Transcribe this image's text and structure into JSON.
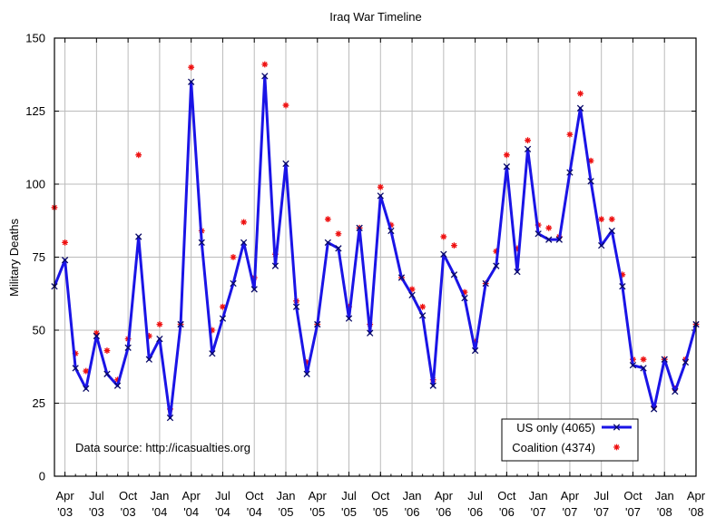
{
  "chart_data": {
    "type": "line",
    "title": "Iraq War Timeline",
    "ylabel": "Military Deaths",
    "xlabel": "",
    "ylim": [
      0,
      150
    ],
    "xlim": [
      "2003-03",
      "2008-04"
    ],
    "yticks": [
      0,
      25,
      50,
      75,
      100,
      125,
      150
    ],
    "xticks": [
      {
        "m": "2003-04",
        "top": "Apr",
        "bottom": "'03"
      },
      {
        "m": "2003-07",
        "top": "Jul",
        "bottom": "'03"
      },
      {
        "m": "2003-10",
        "top": "Oct",
        "bottom": "'03"
      },
      {
        "m": "2004-01",
        "top": "Jan",
        "bottom": "'04"
      },
      {
        "m": "2004-04",
        "top": "Apr",
        "bottom": "'04"
      },
      {
        "m": "2004-07",
        "top": "Jul",
        "bottom": "'04"
      },
      {
        "m": "2004-10",
        "top": "Oct",
        "bottom": "'04"
      },
      {
        "m": "2005-01",
        "top": "Jan",
        "bottom": "'05"
      },
      {
        "m": "2005-04",
        "top": "Apr",
        "bottom": "'05"
      },
      {
        "m": "2005-07",
        "top": "Jul",
        "bottom": "'05"
      },
      {
        "m": "2005-10",
        "top": "Oct",
        "bottom": "'05"
      },
      {
        "m": "2006-01",
        "top": "Jan",
        "bottom": "'06"
      },
      {
        "m": "2006-04",
        "top": "Apr",
        "bottom": "'06"
      },
      {
        "m": "2006-07",
        "top": "Jul",
        "bottom": "'06"
      },
      {
        "m": "2006-10",
        "top": "Oct",
        "bottom": "'06"
      },
      {
        "m": "2007-01",
        "top": "Jan",
        "bottom": "'07"
      },
      {
        "m": "2007-04",
        "top": "Apr",
        "bottom": "'07"
      },
      {
        "m": "2007-07",
        "top": "Jul",
        "bottom": "'07"
      },
      {
        "m": "2007-10",
        "top": "Oct",
        "bottom": "'07"
      },
      {
        "m": "2008-01",
        "top": "Jan",
        "bottom": "'08"
      },
      {
        "m": "2008-04",
        "top": "Apr",
        "bottom": "'08"
      }
    ],
    "x": [
      "2003-03",
      "2003-04",
      "2003-05",
      "2003-06",
      "2003-07",
      "2003-08",
      "2003-09",
      "2003-10",
      "2003-11",
      "2003-12",
      "2004-01",
      "2004-02",
      "2004-03",
      "2004-04",
      "2004-05",
      "2004-06",
      "2004-07",
      "2004-08",
      "2004-09",
      "2004-10",
      "2004-11",
      "2004-12",
      "2005-01",
      "2005-02",
      "2005-03",
      "2005-04",
      "2005-05",
      "2005-06",
      "2005-07",
      "2005-08",
      "2005-09",
      "2005-10",
      "2005-11",
      "2005-12",
      "2006-01",
      "2006-02",
      "2006-03",
      "2006-04",
      "2006-05",
      "2006-06",
      "2006-07",
      "2006-08",
      "2006-09",
      "2006-10",
      "2006-11",
      "2006-12",
      "2007-01",
      "2007-02",
      "2007-03",
      "2007-04",
      "2007-05",
      "2007-06",
      "2007-07",
      "2007-08",
      "2007-09",
      "2007-10",
      "2007-11",
      "2007-12",
      "2008-01",
      "2008-02",
      "2008-03",
      "2008-04"
    ],
    "series": [
      {
        "name": "US only (4065)",
        "color": "#1a14e6",
        "marker": "x",
        "line": true,
        "values": [
          65,
          74,
          37,
          30,
          48,
          35,
          31,
          44,
          82,
          40,
          47,
          20,
          52,
          135,
          80,
          42,
          54,
          66,
          80,
          64,
          137,
          72,
          107,
          58,
          35,
          52,
          80,
          78,
          54,
          85,
          49,
          96,
          84,
          68,
          62,
          55,
          31,
          76,
          69,
          61,
          43,
          66,
          72,
          106,
          70,
          112,
          83,
          81,
          81,
          104,
          126,
          101,
          79,
          84,
          65,
          38,
          37,
          23,
          40,
          29,
          39,
          52
        ]
      },
      {
        "name": "Coalition (4374)",
        "color": "#ee1111",
        "marker": "asterisk",
        "line": false,
        "values": [
          92,
          80,
          42,
          36,
          49,
          43,
          33,
          47,
          110,
          48,
          52,
          23,
          52,
          140,
          84,
          50,
          58,
          75,
          87,
          68,
          141,
          76,
          127,
          60,
          39,
          52,
          88,
          83,
          58,
          85,
          52,
          99,
          86,
          68,
          64,
          58,
          33,
          82,
          79,
          63,
          46,
          66,
          77,
          110,
          78,
          115,
          86,
          85,
          82,
          117,
          131,
          108,
          88,
          88,
          69,
          40,
          40,
          24,
          40,
          30,
          40,
          52
        ]
      }
    ],
    "legend_position": "bottom-right",
    "grid": true
  },
  "annotation": "Data source: http://icasualties.org"
}
